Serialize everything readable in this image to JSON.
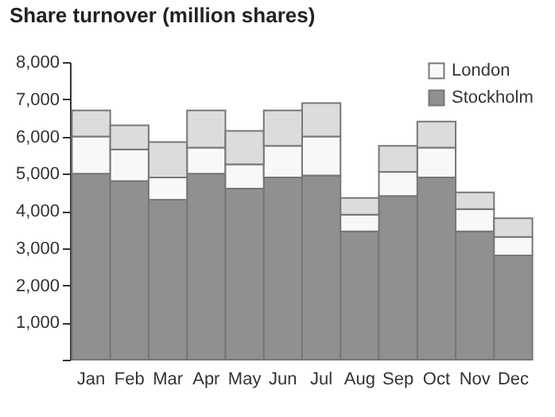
{
  "chart_data": {
    "type": "bar",
    "title": "Share turnover (million shares)",
    "categories": [
      "Jan",
      "Feb",
      "Mar",
      "Apr",
      "May",
      "Jun",
      "Jul",
      "Aug",
      "Sep",
      "Oct",
      "Nov",
      "Dec"
    ],
    "stacked": true,
    "series": [
      {
        "name": "Stockholm",
        "color": "#909090",
        "values": [
          5000,
          4800,
          4300,
          5000,
          4600,
          4900,
          4950,
          3450,
          4400,
          4900,
          3450,
          2800
        ]
      },
      {
        "name": "London",
        "color": "#f8f8f8",
        "values": [
          1000,
          850,
          600,
          700,
          650,
          850,
          1050,
          450,
          650,
          800,
          600,
          500
        ]
      },
      {
        "color": "#dcdcdc",
        "values": [
          700,
          650,
          950,
          1000,
          900,
          950,
          900,
          450,
          700,
          700,
          450,
          500
        ]
      }
    ],
    "ylim": [
      0,
      8000
    ],
    "yticks": [
      {
        "value": 0,
        "label": null
      },
      {
        "value": 1000,
        "label": "1,000"
      },
      {
        "value": 2000,
        "label": "2,000"
      },
      {
        "value": 3000,
        "label": "3,000"
      },
      {
        "value": 4000,
        "label": "4,000"
      },
      {
        "value": 5000,
        "label": "5,000"
      },
      {
        "value": 6000,
        "label": "6,000"
      },
      {
        "value": 7000,
        "label": "7,000"
      },
      {
        "value": 8000,
        "label": "8,000"
      }
    ],
    "legend": "top right",
    "grid": false
  }
}
